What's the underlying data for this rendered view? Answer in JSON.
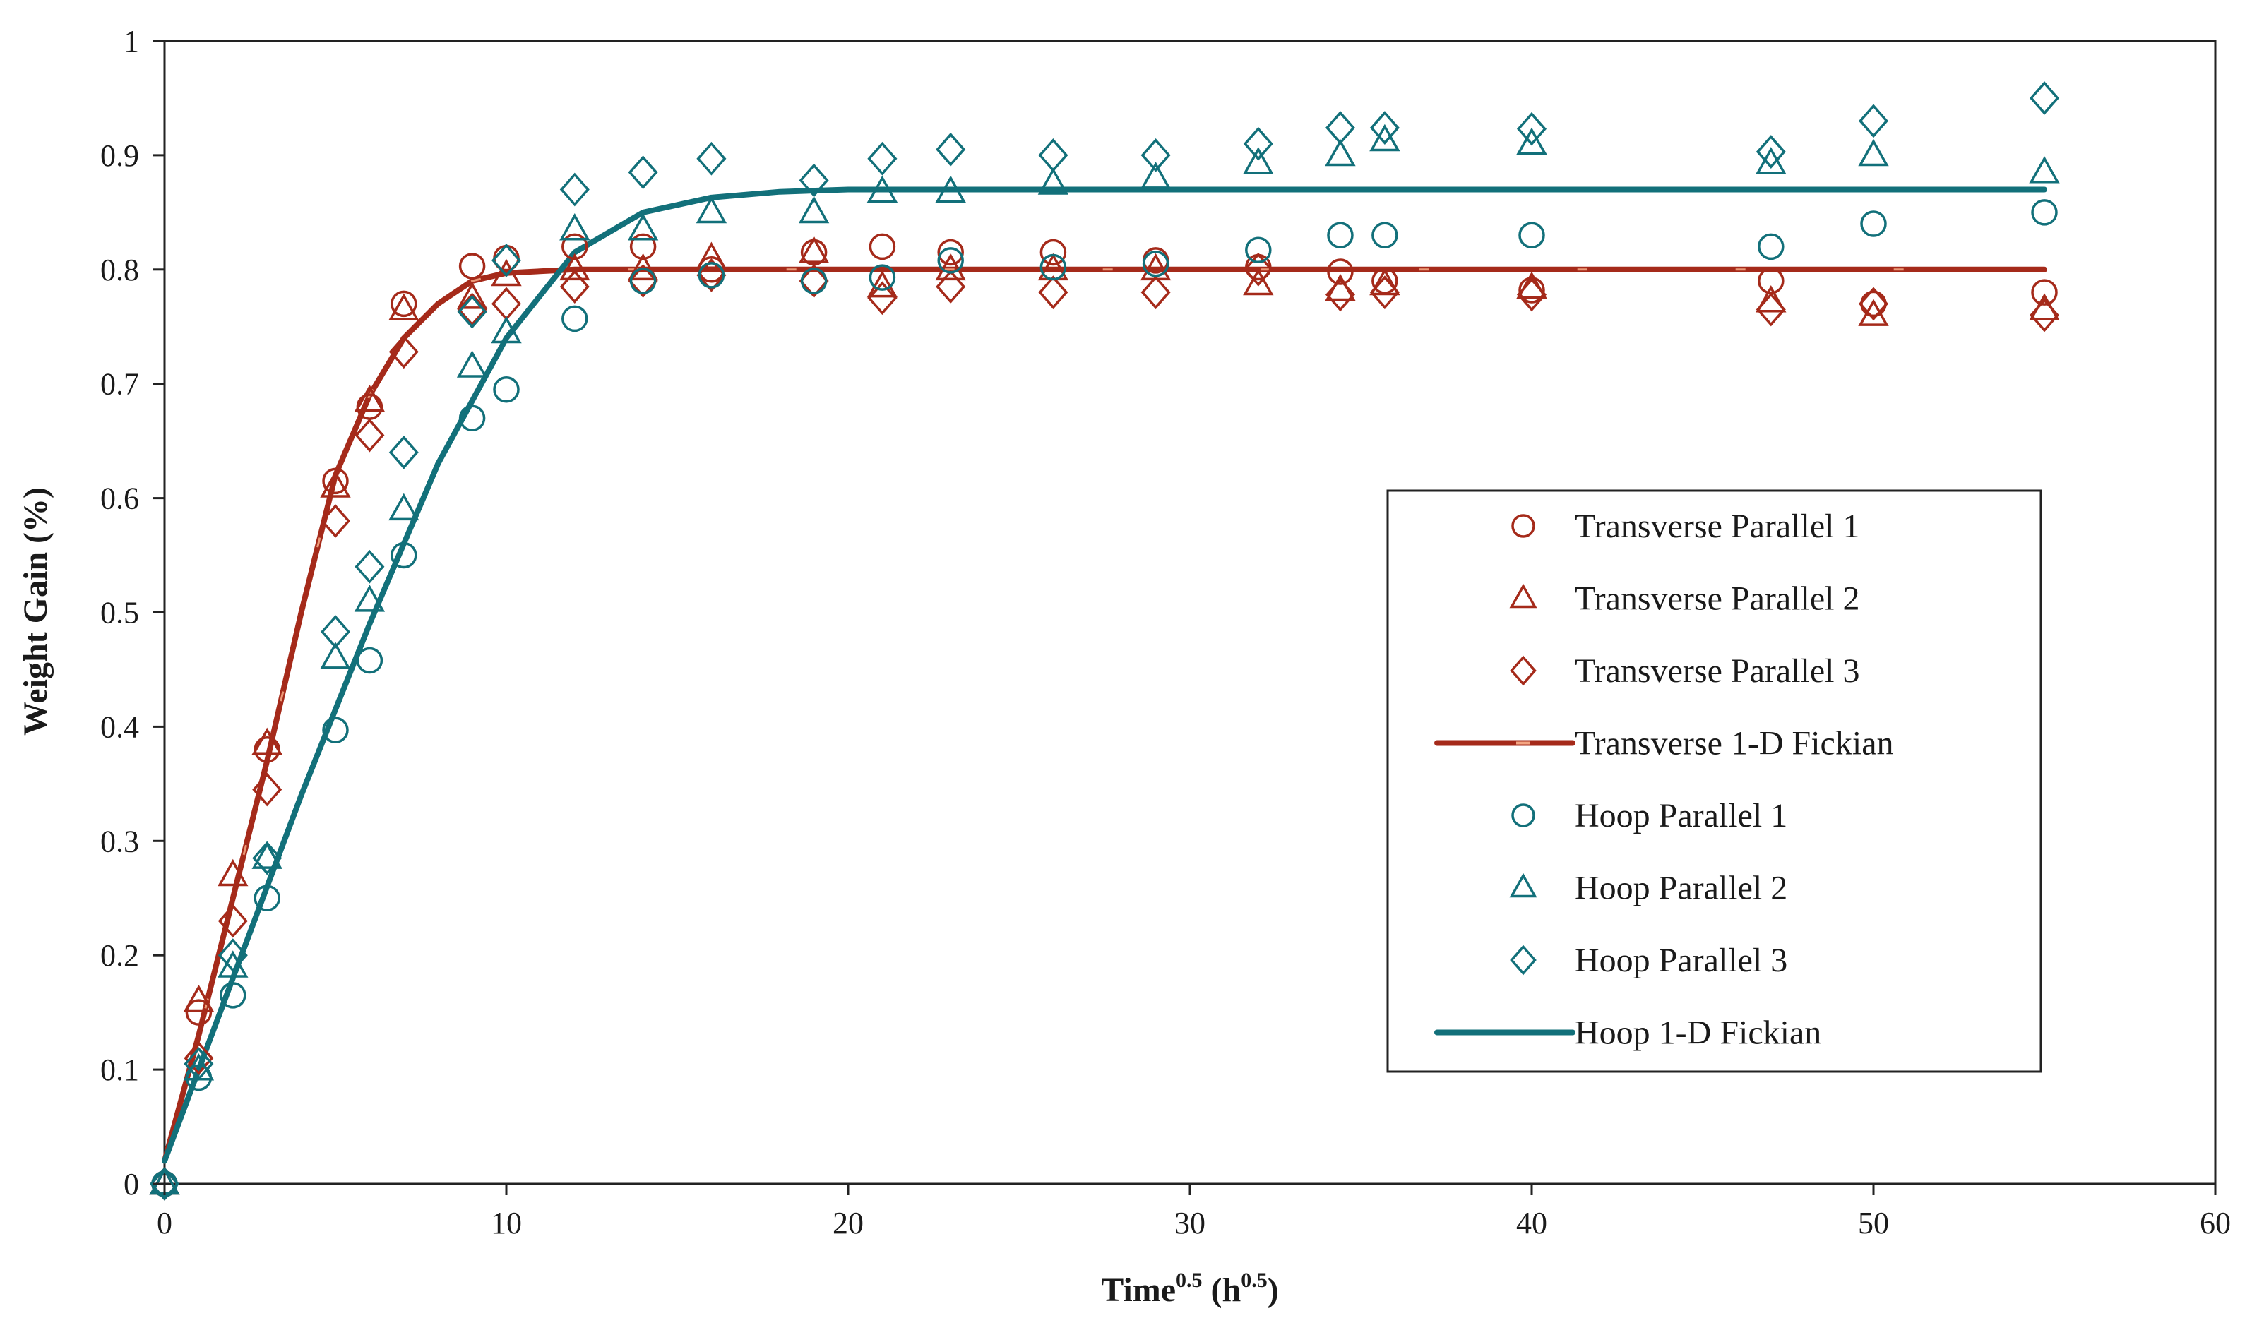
{
  "chart_data": {
    "type": "scatter",
    "title": "",
    "xlabel": "Time",
    "xlabel_sup": "0.5",
    "xlabel_unit": " (h",
    "xlabel_unit_sup": "0.5",
    "xlabel_close": ")",
    "ylabel": "Weight Gain (%)",
    "xlim": [
      0,
      60
    ],
    "ylim": [
      0,
      1
    ],
    "xticks": [
      0,
      10,
      20,
      30,
      40,
      50,
      60
    ],
    "yticks": [
      0,
      0.1,
      0.2,
      0.3,
      0.4,
      0.5,
      0.6,
      0.7,
      0.8,
      0.9,
      1
    ],
    "ytick_labels": [
      "0",
      "0.1",
      "0.2",
      "0.3",
      "0.4",
      "0.5",
      "0.6",
      "0.7",
      "0.8",
      "0.9",
      "1"
    ],
    "grid": false,
    "legend_position": "center-right",
    "colors": {
      "transverse": "#a52a1a",
      "hoop": "#12707a",
      "transverse_dash": "#f4a582"
    },
    "series": [
      {
        "name": "Transverse Parallel 1",
        "kind": "marker",
        "marker": "circle",
        "color": "#a52a1a",
        "x": [
          0,
          1,
          3,
          5,
          6,
          7,
          9,
          10,
          12,
          14,
          16,
          19,
          21,
          23,
          26,
          29,
          32,
          34.4,
          35.7,
          40,
          47,
          50,
          55
        ],
        "y": [
          0,
          0.15,
          0.38,
          0.615,
          0.68,
          0.77,
          0.803,
          0.81,
          0.82,
          0.82,
          0.8,
          0.815,
          0.82,
          0.815,
          0.815,
          0.808,
          0.802,
          0.798,
          0.79,
          0.782,
          0.79,
          0.77,
          0.78
        ]
      },
      {
        "name": "Transverse Parallel 2",
        "kind": "marker",
        "marker": "triangle",
        "color": "#a52a1a",
        "x": [
          0,
          1,
          2,
          3,
          5,
          6,
          7,
          9,
          10,
          12,
          14,
          16,
          19,
          21,
          23,
          26,
          29,
          32,
          34.4,
          35.7,
          40,
          47,
          50,
          55
        ],
        "y": [
          0,
          0.16,
          0.27,
          0.385,
          0.61,
          0.685,
          0.765,
          0.775,
          0.795,
          0.8,
          0.8,
          0.81,
          0.815,
          0.785,
          0.8,
          0.8,
          0.8,
          0.787,
          0.782,
          0.787,
          0.784,
          0.772,
          0.76,
          0.765
        ]
      },
      {
        "name": "Transverse Parallel 3",
        "kind": "marker",
        "marker": "diamond",
        "color": "#a52a1a",
        "x": [
          0,
          1,
          2,
          3,
          5,
          6,
          7,
          9,
          10,
          12,
          14,
          16,
          19,
          21,
          23,
          26,
          29,
          32,
          34.4,
          35.7,
          40,
          47,
          50,
          55
        ],
        "y": [
          0,
          0.11,
          0.23,
          0.345,
          0.58,
          0.655,
          0.728,
          0.765,
          0.77,
          0.785,
          0.79,
          0.795,
          0.79,
          0.775,
          0.785,
          0.78,
          0.78,
          0.8,
          0.778,
          0.78,
          0.778,
          0.765,
          0.77,
          0.76
        ]
      },
      {
        "name": "Transverse 1-D Fickian",
        "kind": "line",
        "color": "#a52a1a",
        "dash_color": "#f4a582",
        "x": [
          0,
          1,
          2,
          3,
          4,
          5,
          6,
          7,
          8,
          9,
          10,
          12,
          14,
          20,
          30,
          40,
          50,
          55
        ],
        "y": [
          0.02,
          0.13,
          0.25,
          0.37,
          0.5,
          0.62,
          0.69,
          0.74,
          0.77,
          0.79,
          0.797,
          0.8,
          0.8,
          0.8,
          0.8,
          0.8,
          0.8,
          0.8
        ]
      },
      {
        "name": "Hoop Parallel 1",
        "kind": "marker",
        "marker": "circle",
        "color": "#12707a",
        "x": [
          0,
          1,
          2,
          3,
          5,
          6,
          7,
          9,
          10,
          12,
          14,
          16,
          19,
          21,
          23,
          26,
          29,
          32,
          34.4,
          35.7,
          40,
          47,
          50,
          55
        ],
        "y": [
          0,
          0.093,
          0.165,
          0.25,
          0.397,
          0.458,
          0.55,
          0.67,
          0.695,
          0.757,
          0.79,
          0.795,
          0.79,
          0.793,
          0.808,
          0.802,
          0.805,
          0.817,
          0.83,
          0.83,
          0.83,
          0.82,
          0.84,
          0.85
        ]
      },
      {
        "name": "Hoop Parallel 2",
        "kind": "marker",
        "marker": "triangle",
        "color": "#12707a",
        "x": [
          0,
          1,
          2,
          3,
          5,
          6,
          7,
          9,
          10,
          12,
          14,
          16,
          19,
          21,
          23,
          26,
          29,
          32,
          34.4,
          35.7,
          40,
          47,
          50,
          55
        ],
        "y": [
          0,
          0.1,
          0.19,
          0.285,
          0.46,
          0.51,
          0.59,
          0.715,
          0.745,
          0.835,
          0.835,
          0.85,
          0.85,
          0.868,
          0.868,
          0.875,
          0.88,
          0.893,
          0.9,
          0.913,
          0.91,
          0.893,
          0.9,
          0.885
        ]
      },
      {
        "name": "Hoop Parallel 3",
        "kind": "marker",
        "marker": "diamond",
        "color": "#12707a",
        "x": [
          0,
          1,
          2,
          3,
          5,
          6,
          7,
          9,
          10,
          12,
          14,
          16,
          19,
          21,
          23,
          26,
          29,
          32,
          34.4,
          35.7,
          40,
          47,
          50,
          55
        ],
        "y": [
          0,
          0.105,
          0.2,
          0.285,
          0.483,
          0.54,
          0.64,
          0.763,
          0.808,
          0.87,
          0.885,
          0.897,
          0.878,
          0.897,
          0.905,
          0.9,
          0.9,
          0.91,
          0.924,
          0.924,
          0.923,
          0.903,
          0.93,
          0.95
        ]
      },
      {
        "name": "Hoop 1-D Fickian",
        "kind": "line",
        "color": "#12707a",
        "x": [
          0,
          2,
          4,
          6,
          8,
          10,
          12,
          14,
          16,
          18,
          20,
          25,
          30,
          40,
          50,
          55
        ],
        "y": [
          0.02,
          0.18,
          0.34,
          0.49,
          0.63,
          0.74,
          0.815,
          0.85,
          0.863,
          0.868,
          0.87,
          0.87,
          0.87,
          0.87,
          0.87,
          0.87
        ]
      }
    ]
  }
}
